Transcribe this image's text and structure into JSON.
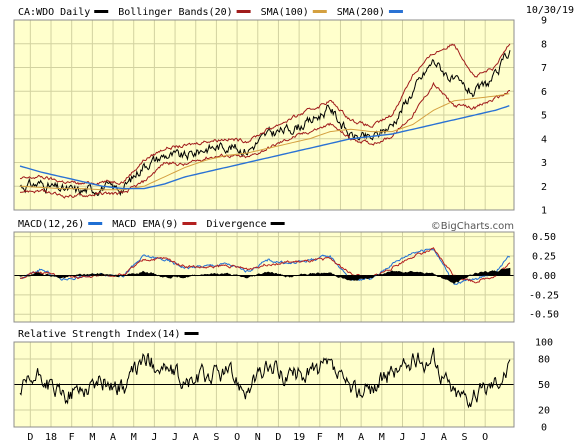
{
  "colors": {
    "page_bg": "#ffffff",
    "panel_bg": "#ffffcc",
    "grid": "#d2d2a0",
    "frame": "#8c8c8c",
    "price": "#000000",
    "bollinger": "#a01c1c",
    "sma100": "#d4a040",
    "sma200": "#2a72d4",
    "macd": "#1f6fd4",
    "macd_ema": "#b32020",
    "divergence": "#000000",
    "rsi": "#000000"
  },
  "header": {
    "date": "10/30/19",
    "credit": "©BigCharts.com"
  },
  "x_axis": {
    "months": [
      "D",
      "18",
      "F",
      "M",
      "A",
      "M",
      "J",
      "J",
      "A",
      "S",
      "O",
      "N",
      "D",
      "19",
      "F",
      "M",
      "A",
      "M",
      "J",
      "J",
      "A",
      "S",
      "O"
    ]
  },
  "chart_data": [
    {
      "type": "line",
      "panel": "price",
      "legend": [
        {
          "label": "CA:WDO Daily",
          "color": "#000000"
        },
        {
          "label": "Bollinger Bands(20)",
          "color": "#a01c1c"
        },
        {
          "label": "SMA(100)",
          "color": "#d4a040"
        },
        {
          "label": "SMA(200)",
          "color": "#2a72d4"
        }
      ],
      "ylim": [
        1,
        9
      ],
      "yticks": [
        1,
        2,
        3,
        4,
        5,
        6,
        7,
        8,
        9
      ],
      "x_months": [
        0,
        1,
        2,
        3,
        4,
        5,
        6,
        7,
        8,
        9,
        10,
        11,
        12,
        13,
        14,
        15,
        16,
        17,
        18,
        19,
        20,
        21,
        22,
        23,
        23.7
      ],
      "series": [
        {
          "key": "price",
          "values": [
            2.0,
            2.1,
            1.85,
            1.8,
            1.95,
            1.9,
            2.9,
            3.3,
            3.25,
            3.6,
            3.7,
            3.5,
            4.2,
            4.4,
            4.7,
            5.3,
            4.1,
            4.0,
            4.6,
            6.0,
            7.3,
            6.4,
            5.9,
            6.6,
            7.8
          ]
        },
        {
          "key": "bb_upper",
          "values": [
            2.3,
            2.4,
            2.2,
            2.1,
            2.2,
            2.2,
            3.1,
            3.6,
            3.7,
            3.9,
            4.0,
            3.9,
            4.4,
            4.8,
            5.2,
            5.6,
            4.8,
            4.5,
            5.0,
            6.7,
            7.6,
            8.0,
            6.6,
            7.0,
            8.1
          ]
        },
        {
          "key": "bb_lower",
          "values": [
            1.8,
            1.8,
            1.6,
            1.6,
            1.7,
            1.7,
            2.2,
            3.0,
            2.9,
            3.2,
            3.3,
            3.2,
            3.6,
            4.0,
            4.3,
            4.6,
            4.0,
            3.8,
            4.1,
            5.0,
            6.3,
            5.4,
            5.3,
            5.7,
            6.0
          ]
        },
        {
          "key": "sma100",
          "values": [
            2.0,
            1.95,
            1.9,
            1.9,
            1.85,
            1.85,
            2.0,
            2.4,
            2.8,
            3.1,
            3.3,
            3.4,
            3.6,
            3.8,
            4.0,
            4.3,
            4.4,
            4.3,
            4.3,
            4.6,
            5.2,
            5.6,
            5.7,
            5.8,
            5.9
          ]
        },
        {
          "key": "sma200",
          "values": [
            2.85,
            2.6,
            2.4,
            2.2,
            2.0,
            1.9,
            1.9,
            2.1,
            2.4,
            2.6,
            2.8,
            3.0,
            3.2,
            3.4,
            3.6,
            3.8,
            4.0,
            4.1,
            4.2,
            4.4,
            4.6,
            4.8,
            5.0,
            5.2,
            5.4
          ]
        }
      ]
    },
    {
      "type": "line",
      "panel": "macd",
      "legend": [
        {
          "label": "MACD(12,26)",
          "color": "#1f6fd4"
        },
        {
          "label": "MACD EMA(9)",
          "color": "#b32020"
        },
        {
          "label": "Divergence",
          "color": "#000000"
        }
      ],
      "ylim": [
        -0.6,
        0.56
      ],
      "yticks": [
        0.5,
        0.25,
        0.0,
        -0.25,
        -0.5
      ],
      "ytick_labels": [
        "0.50",
        "0.25",
        "0.00",
        "-0.25",
        "-0.50"
      ],
      "x_months": [
        0,
        1,
        2,
        3,
        4,
        5,
        6,
        7,
        8,
        9,
        10,
        11,
        12,
        13,
        14,
        15,
        16,
        17,
        18,
        19,
        20,
        21,
        22,
        23,
        23.7
      ],
      "series": [
        {
          "key": "macd",
          "values": [
            -0.05,
            0.08,
            -0.05,
            -0.02,
            0.02,
            0.0,
            0.25,
            0.2,
            0.1,
            0.12,
            0.15,
            0.05,
            0.2,
            0.15,
            0.2,
            0.25,
            -0.05,
            -0.05,
            0.15,
            0.3,
            0.35,
            -0.1,
            -0.05,
            0.05,
            0.25
          ]
        },
        {
          "key": "macd_ema",
          "values": [
            -0.03,
            0.05,
            -0.02,
            -0.03,
            0.0,
            0.01,
            0.2,
            0.22,
            0.12,
            0.1,
            0.13,
            0.08,
            0.15,
            0.17,
            0.18,
            0.22,
            0.02,
            -0.03,
            0.1,
            0.25,
            0.33,
            0.0,
            -0.08,
            0.0,
            0.15
          ]
        },
        {
          "key": "divergence",
          "values": [
            -0.02,
            0.03,
            -0.03,
            0.01,
            0.02,
            -0.01,
            0.05,
            -0.02,
            -0.02,
            0.02,
            0.02,
            -0.03,
            0.05,
            -0.02,
            0.02,
            0.03,
            -0.07,
            -0.02,
            0.05,
            0.05,
            0.02,
            -0.1,
            0.03,
            0.05,
            0.1
          ]
        }
      ]
    },
    {
      "type": "line",
      "panel": "rsi",
      "legend": [
        {
          "label": "Relative Strength Index(14)",
          "color": "#000000"
        }
      ],
      "ylim": [
        0,
        100
      ],
      "yticks": [
        100,
        80,
        50,
        20,
        0
      ],
      "reference_line": 50,
      "x_months": [
        0,
        1,
        2,
        3,
        4,
        5,
        6,
        7,
        8,
        9,
        10,
        11,
        12,
        13,
        14,
        15,
        16,
        17,
        18,
        19,
        20,
        21,
        22,
        23,
        23.7
      ],
      "series": [
        {
          "key": "rsi",
          "values": [
            40,
            60,
            35,
            45,
            55,
            45,
            80,
            70,
            50,
            60,
            65,
            45,
            70,
            60,
            65,
            70,
            40,
            45,
            65,
            75,
            80,
            40,
            35,
            55,
            70
          ]
        }
      ]
    }
  ]
}
